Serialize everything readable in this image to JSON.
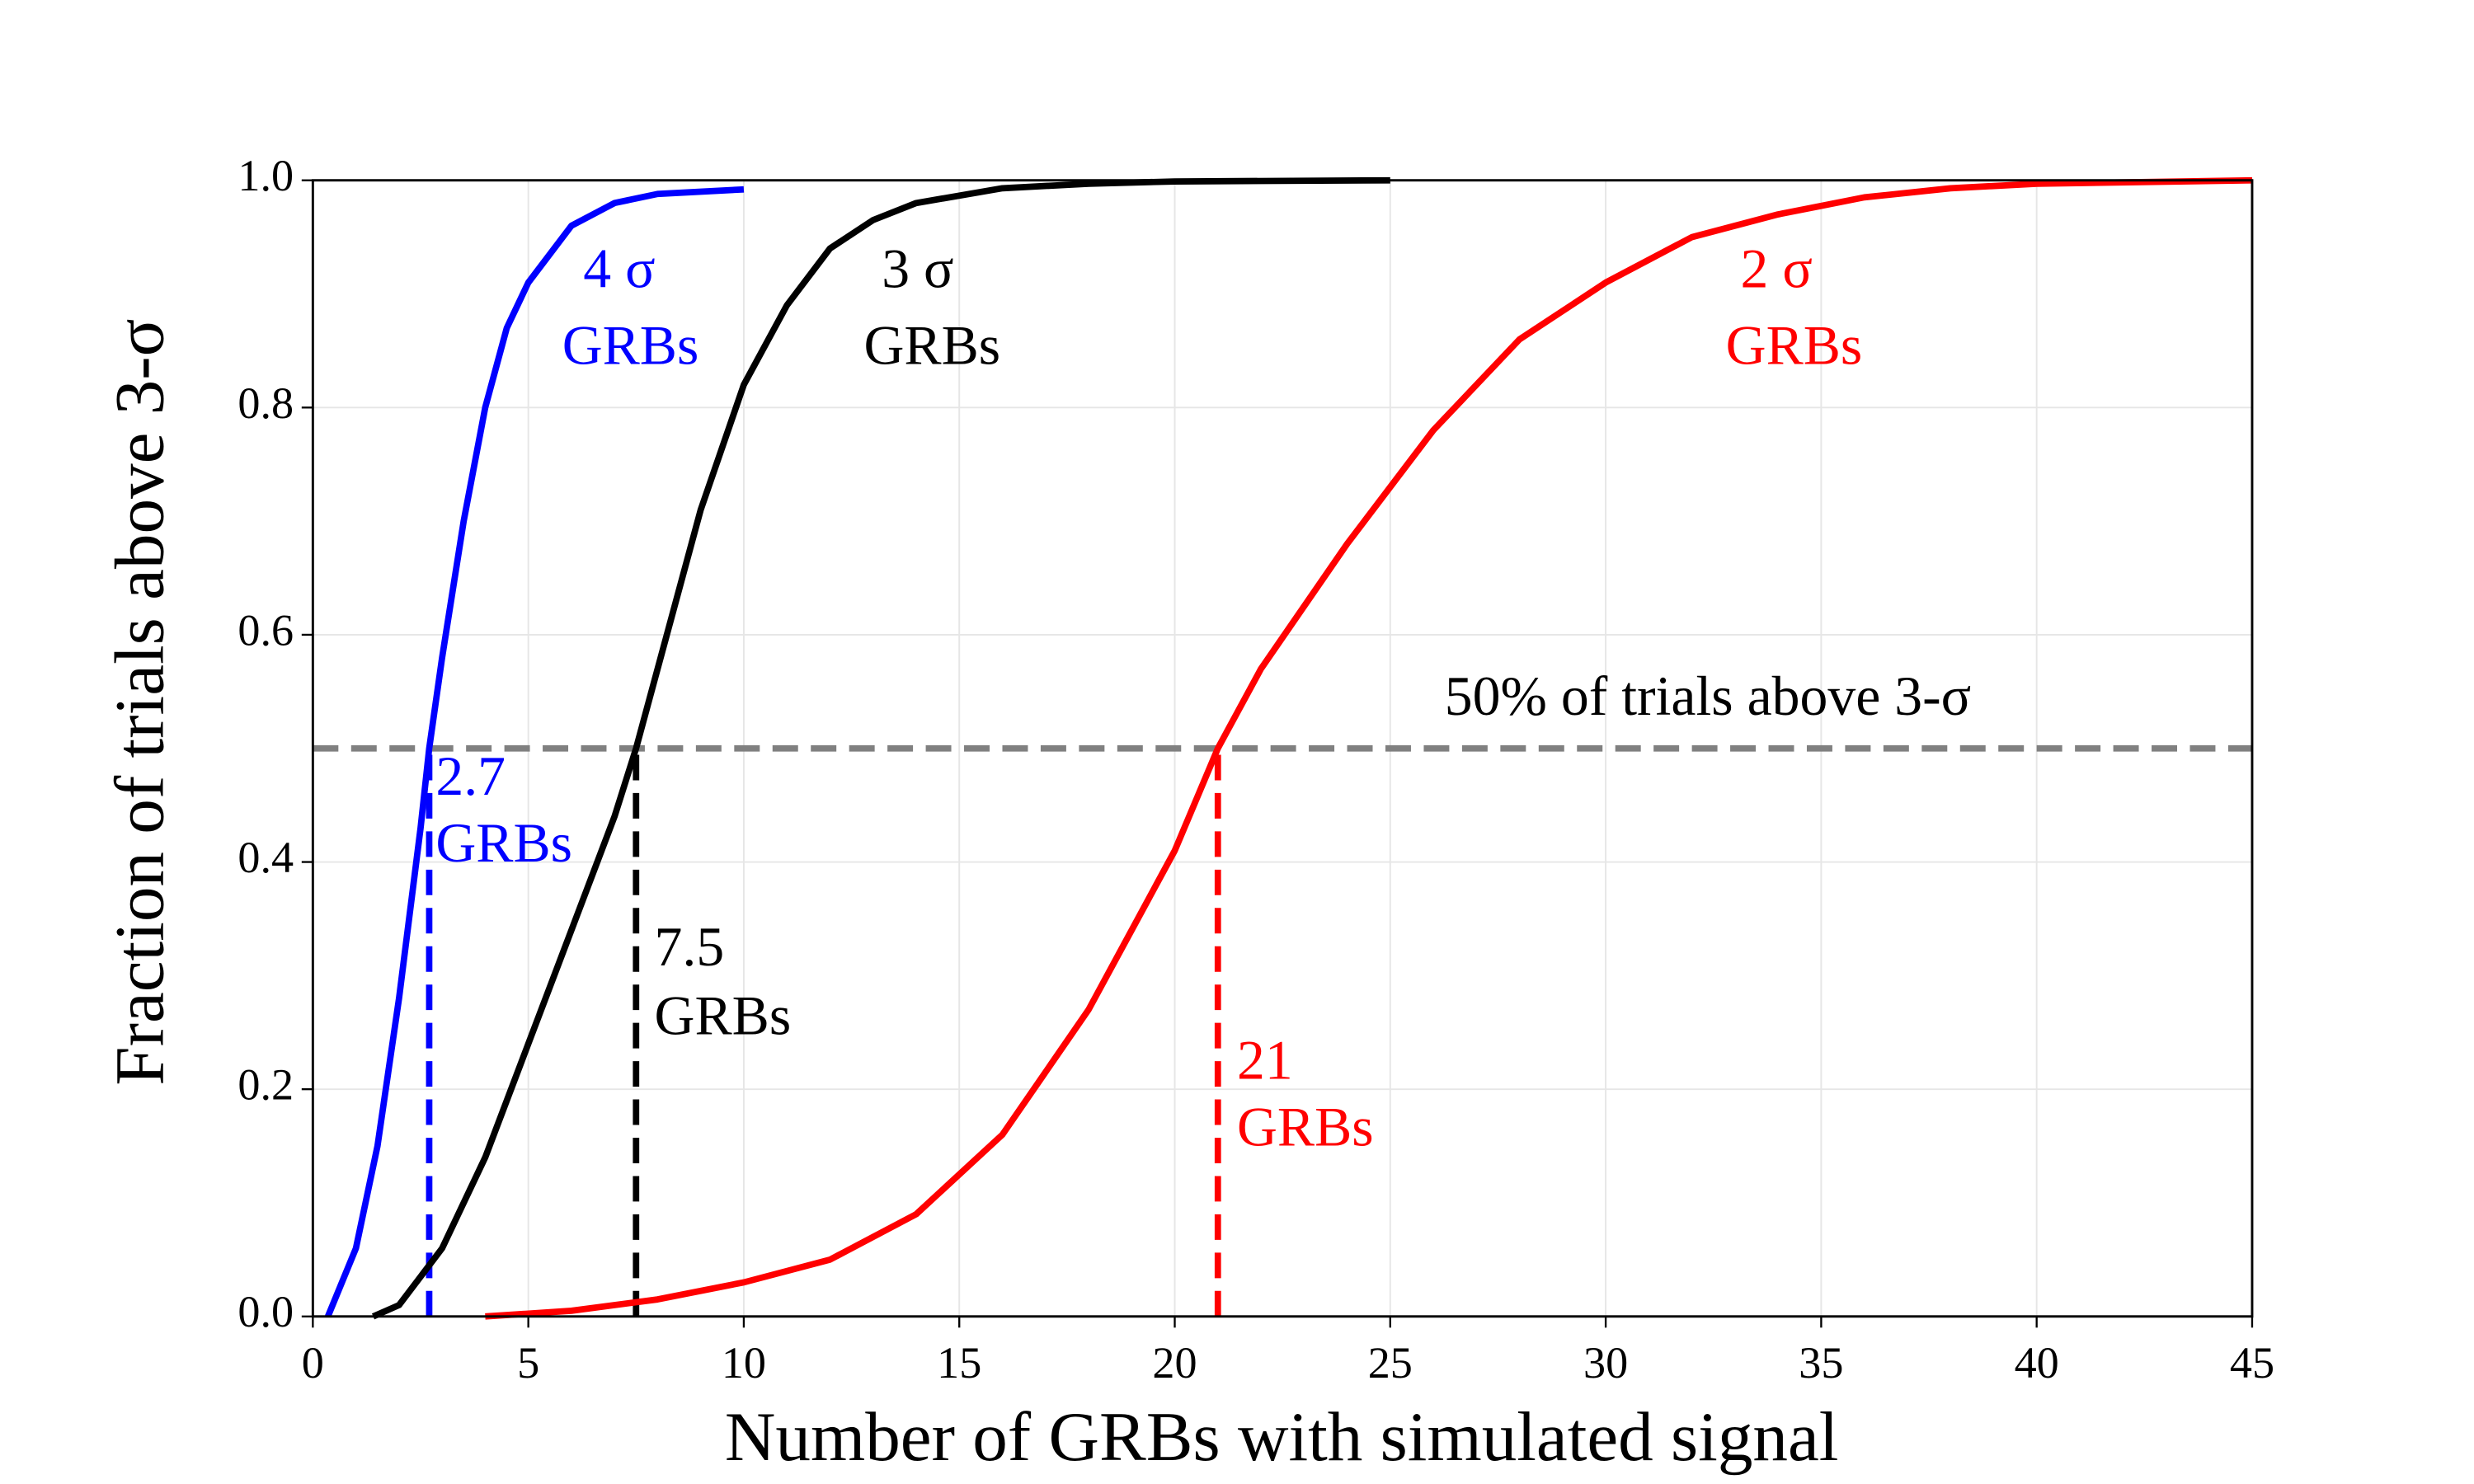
{
  "chart_data": {
    "type": "line",
    "xlabel": "Number of GRBs with simulated signal",
    "ylabel": "Fraction of trials above 3-σ",
    "xlim": [
      0,
      45
    ],
    "ylim": [
      0,
      1
    ],
    "xticks": [
      0,
      5,
      10,
      15,
      20,
      25,
      30,
      35,
      40,
      45
    ],
    "yticks": [
      {
        "value": 0,
        "label": "0.0"
      },
      0.2,
      0.4,
      0.6,
      0.8,
      {
        "value": 1,
        "label": "1.0"
      }
    ],
    "grid": true,
    "threshold": 0.5,
    "threshold_color": "#808080",
    "threshold_label": "50% of trials above 3-σ",
    "series": [
      {
        "name": "4 σ",
        "name_line2": "GRBs",
        "color": "#0000ff",
        "x": [
          0.35,
          1,
          1.5,
          2,
          2.5,
          2.7,
          3,
          3.5,
          4,
          4.5,
          5,
          6,
          7,
          8,
          10
        ],
        "values": [
          0,
          0.06,
          0.15,
          0.28,
          0.43,
          0.5,
          0.58,
          0.7,
          0.8,
          0.87,
          0.91,
          0.96,
          0.98,
          0.988,
          0.992
        ],
        "crossing": 2.7,
        "crossing_unit": "GRBs"
      },
      {
        "name": "3 σ",
        "name_line2": "GRBs",
        "color": "#000000",
        "x": [
          1.4,
          2,
          3,
          4,
          5,
          6,
          7,
          7.5,
          8,
          9,
          10,
          11,
          12,
          13,
          14,
          16,
          18,
          20,
          25
        ],
        "values": [
          0,
          0.01,
          0.06,
          0.14,
          0.24,
          0.34,
          0.44,
          0.5,
          0.57,
          0.71,
          0.82,
          0.89,
          0.94,
          0.965,
          0.98,
          0.993,
          0.997,
          0.999,
          1.0
        ],
        "crossing": 7.5,
        "crossing_unit": "GRBs"
      },
      {
        "name": "2 σ",
        "name_line2": "GRBs",
        "color": "#ff0000",
        "x": [
          4,
          6,
          8,
          10,
          12,
          14,
          16,
          18,
          20,
          21,
          22,
          24,
          26,
          28,
          30,
          32,
          34,
          36,
          38,
          40,
          45
        ],
        "values": [
          0,
          0.005,
          0.015,
          0.03,
          0.05,
          0.09,
          0.16,
          0.27,
          0.41,
          0.5,
          0.57,
          0.68,
          0.78,
          0.86,
          0.91,
          0.95,
          0.97,
          0.985,
          0.993,
          0.997,
          1.0
        ],
        "crossing": 21,
        "crossing_unit": "GRBs"
      }
    ]
  }
}
